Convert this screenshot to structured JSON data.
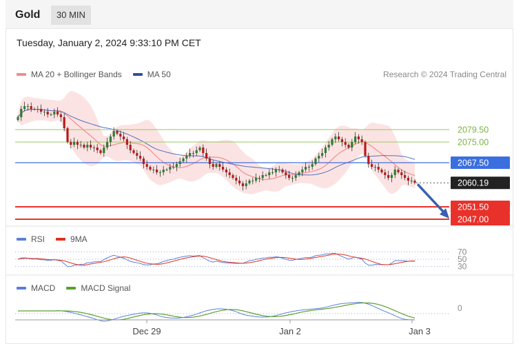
{
  "header": {
    "title": "Gold",
    "timeframe": "30 MIN"
  },
  "timestamp": "Tuesday, January 2, 2024 9:33:10 PM CET",
  "legend_main": {
    "ma20": {
      "label": "MA 20 + Bollinger Bands",
      "color": "#f28b8b"
    },
    "ma50": {
      "label": "MA 50",
      "color": "#2f4f9e"
    }
  },
  "credit": "Research © 2024 Trading Central",
  "legend_rsi": {
    "rsi": {
      "label": "RSI",
      "color": "#5b7fd6"
    },
    "ma9": {
      "label": "9MA",
      "color": "#e03020"
    }
  },
  "legend_macd": {
    "macd": {
      "label": "MACD",
      "color": "#5b7fd6"
    },
    "signal": {
      "label": "MACD Signal",
      "color": "#5aa02c"
    }
  },
  "chart_data": {
    "type": "candlestick",
    "instrument": "Gold",
    "timeframe": "30 MIN",
    "x_ticks": [
      "Dec 29",
      "Jan 2",
      "Jan 3"
    ],
    "ylim": [
      2046,
      2094
    ],
    "price_levels": [
      {
        "label": "2079.50",
        "value": 2079.5,
        "kind": "resistance",
        "color": "#9ccc65"
      },
      {
        "label": "2075.00",
        "value": 2075.0,
        "kind": "resistance",
        "color": "#9ccc65"
      },
      {
        "label": "2067.50",
        "value": 2067.5,
        "kind": "pivot",
        "color": "#3b6fe0"
      },
      {
        "label": "2060.19",
        "value": 2060.19,
        "kind": "last-price",
        "color": "#222222"
      },
      {
        "label": "2051.50",
        "value": 2051.5,
        "kind": "support",
        "color": "#e8312a"
      },
      {
        "label": "2047.00",
        "value": 2047.0,
        "kind": "support",
        "color": "#e8312a"
      }
    ],
    "close": [
      2084,
      2087,
      2088,
      2088,
      2087,
      2087,
      2087,
      2086,
      2086,
      2085,
      2085,
      2086,
      2085,
      2084,
      2080,
      2075,
      2074,
      2075,
      2074,
      2074,
      2073,
      2074,
      2073,
      2073,
      2072,
      2071,
      2073,
      2075,
      2077,
      2079,
      2078,
      2077,
      2076,
      2074,
      2072,
      2071,
      2070,
      2069,
      2067,
      2066,
      2065,
      2065,
      2064,
      2064,
      2065,
      2065,
      2066,
      2066,
      2067,
      2068,
      2069,
      2070,
      2071,
      2071,
      2072,
      2073,
      2071,
      2069,
      2067,
      2066,
      2067,
      2066,
      2065,
      2064,
      2063,
      2062,
      2061,
      2060,
      2059,
      2060,
      2061,
      2061,
      2062,
      2062,
      2063,
      2063,
      2064,
      2064,
      2065,
      2065,
      2064,
      2063,
      2062,
      2062,
      2063,
      2064,
      2065,
      2066,
      2066,
      2067,
      2069,
      2070,
      2071,
      2073,
      2074,
      2076,
      2077,
      2076,
      2075,
      2074,
      2073,
      2075,
      2077,
      2076,
      2075,
      2070,
      2067,
      2066,
      2066,
      2065,
      2064,
      2063,
      2062,
      2063,
      2065,
      2064,
      2063,
      2062,
      2061,
      2061,
      2060.19
    ],
    "rsi_ticks": [
      70,
      50,
      30
    ],
    "macd_ticks": [
      0
    ],
    "ma20_ma50_note": "MA 20 with Bollinger Bands and MA 50 overlaid on price",
    "annotation": "arrow pointing down from current price toward 2051.50 / 2047.00 support"
  }
}
